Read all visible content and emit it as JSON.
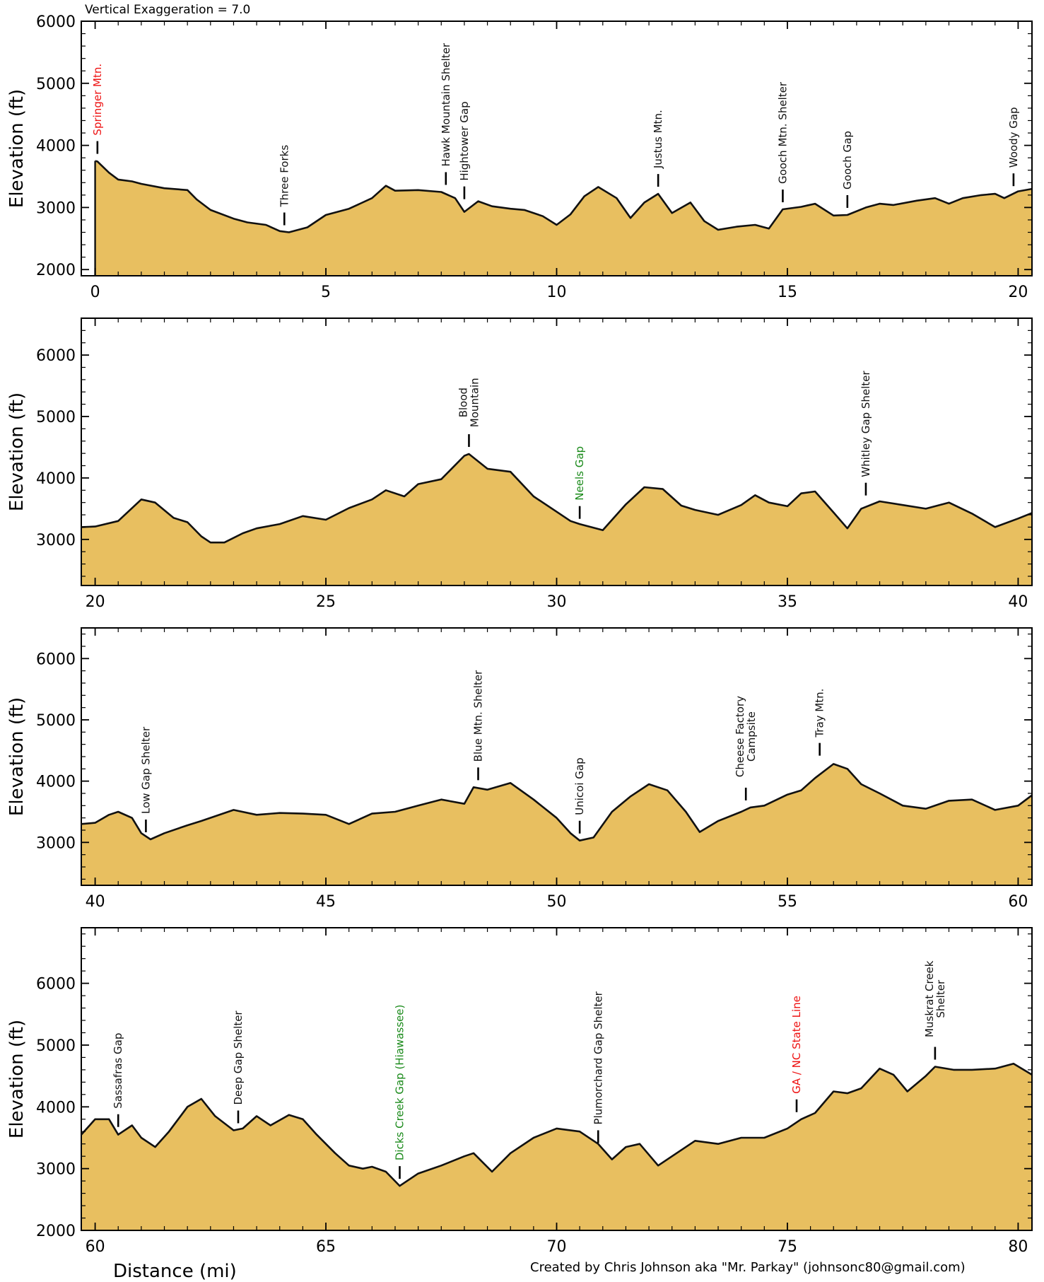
{
  "header": {
    "exaggeration": "Vertical Exaggeration = 7.0"
  },
  "footer": {
    "xlabel": "Distance (mi)",
    "credit": "Created by Chris Johnson aka \"Mr. Parkay\" (johnsonc80@gmail.com)"
  },
  "colors": {
    "fill": "#E8BF60",
    "line": "#111111",
    "green": "#1a8a1a",
    "red": "#ee1111"
  },
  "chart_data": [
    {
      "type": "area",
      "ylabel": "Elevation (ft)",
      "xlim": [
        -0.3,
        20.3
      ],
      "ylim": [
        1900,
        6000
      ],
      "xticks": [
        0,
        5,
        10,
        15,
        20
      ],
      "yticks": [
        2000,
        3000,
        4000,
        5000,
        6000
      ],
      "x": [
        0,
        0.05,
        0.3,
        0.5,
        0.8,
        1.0,
        1.5,
        2.0,
        2.2,
        2.5,
        3.0,
        3.3,
        3.7,
        4.0,
        4.2,
        4.6,
        5.0,
        5.5,
        6.0,
        6.3,
        6.5,
        7.0,
        7.5,
        7.8,
        8.0,
        8.3,
        8.6,
        9.0,
        9.3,
        9.7,
        10.0,
        10.3,
        10.6,
        10.9,
        11.3,
        11.6,
        11.9,
        12.2,
        12.5,
        12.9,
        13.2,
        13.5,
        13.9,
        14.3,
        14.6,
        14.9,
        15.3,
        15.6,
        16.0,
        16.3,
        16.7,
        17.0,
        17.3,
        17.8,
        18.2,
        18.5,
        18.8,
        19.2,
        19.5,
        19.7,
        20.0,
        20.3
      ],
      "y": [
        3750,
        3740,
        3560,
        3450,
        3420,
        3380,
        3310,
        3280,
        3130,
        2960,
        2820,
        2760,
        2720,
        2620,
        2600,
        2680,
        2880,
        2980,
        3150,
        3350,
        3270,
        3280,
        3250,
        3150,
        2930,
        3100,
        3020,
        2980,
        2960,
        2860,
        2720,
        2890,
        3180,
        3330,
        3150,
        2830,
        3080,
        3220,
        2910,
        3080,
        2780,
        2640,
        2690,
        2720,
        2660,
        2970,
        3010,
        3060,
        2870,
        2880,
        3000,
        3060,
        3040,
        3110,
        3150,
        3060,
        3150,
        3200,
        3220,
        3150,
        3260,
        3300
      ],
      "markers": [
        {
          "x": 0.05,
          "y": 3750,
          "label": "Springer Mtn.",
          "color": "red"
        },
        {
          "x": 4.1,
          "y": 2600,
          "label": "Three Forks",
          "color": "black"
        },
        {
          "x": 7.6,
          "y": 3250,
          "label": "Hawk Mountain Shelter",
          "color": "black"
        },
        {
          "x": 8.0,
          "y": 3020,
          "label": "Hightower Gap",
          "color": "black"
        },
        {
          "x": 12.2,
          "y": 3220,
          "label": "Justus Mtn.",
          "color": "black"
        },
        {
          "x": 14.9,
          "y": 2970,
          "label": "Gooch Mtn. Shelter",
          "color": "black"
        },
        {
          "x": 16.3,
          "y": 2880,
          "label": "Gooch Gap",
          "color": "black"
        },
        {
          "x": 19.9,
          "y": 3230,
          "label": "Woody Gap",
          "color": "black"
        }
      ]
    },
    {
      "type": "area",
      "ylabel": "Elevation (ft)",
      "xlim": [
        19.7,
        40.3
      ],
      "ylim": [
        2250,
        6600
      ],
      "xticks": [
        20,
        25,
        30,
        35,
        40
      ],
      "yticks": [
        3000,
        4000,
        5000,
        6000
      ],
      "x": [
        19.7,
        20.0,
        20.5,
        21.0,
        21.3,
        21.7,
        22.0,
        22.3,
        22.5,
        22.8,
        23.2,
        23.5,
        24.0,
        24.5,
        25.0,
        25.5,
        26.0,
        26.3,
        26.7,
        27.0,
        27.5,
        28.0,
        28.1,
        28.5,
        29.0,
        29.5,
        30.0,
        30.3,
        30.5,
        31.0,
        31.5,
        31.9,
        32.3,
        32.7,
        33.0,
        33.5,
        34.0,
        34.3,
        34.6,
        35.0,
        35.3,
        35.6,
        36.0,
        36.3,
        36.6,
        37.0,
        37.5,
        38.0,
        38.5,
        39.0,
        39.5,
        40.0,
        40.3
      ],
      "y": [
        3200,
        3210,
        3300,
        3650,
        3600,
        3350,
        3280,
        3050,
        2950,
        2950,
        3100,
        3180,
        3250,
        3380,
        3320,
        3510,
        3650,
        3800,
        3700,
        3900,
        3980,
        4360,
        4390,
        4150,
        4100,
        3700,
        3450,
        3300,
        3250,
        3150,
        3570,
        3850,
        3820,
        3550,
        3480,
        3400,
        3560,
        3720,
        3600,
        3540,
        3750,
        3780,
        3440,
        3180,
        3500,
        3620,
        3560,
        3500,
        3600,
        3420,
        3200,
        3340,
        3430
      ],
      "markers": [
        {
          "x": 28.1,
          "y": 4390,
          "label": "Blood\nMountain",
          "color": "black"
        },
        {
          "x": 30.5,
          "y": 3220,
          "label": "Neels Gap",
          "color": "green"
        },
        {
          "x": 36.7,
          "y": 3600,
          "label": "Whitley Gap Shelter",
          "color": "black"
        }
      ]
    },
    {
      "type": "area",
      "ylabel": "Elevation (ft)",
      "xlim": [
        39.7,
        60.3
      ],
      "ylim": [
        2300,
        6500
      ],
      "xticks": [
        40,
        45,
        50,
        55,
        60
      ],
      "yticks": [
        3000,
        4000,
        5000,
        6000
      ],
      "x": [
        39.7,
        40.0,
        40.3,
        40.5,
        40.8,
        41.0,
        41.2,
        41.5,
        42.0,
        42.3,
        43.0,
        43.5,
        44.0,
        44.5,
        45.0,
        45.5,
        46.0,
        46.5,
        47.0,
        47.5,
        48.0,
        48.2,
        48.5,
        49.0,
        49.5,
        50.0,
        50.3,
        50.5,
        50.8,
        51.2,
        51.6,
        52.0,
        52.4,
        52.8,
        53.1,
        53.5,
        54.0,
        54.2,
        54.5,
        55.0,
        55.3,
        55.6,
        56.0,
        56.3,
        56.6,
        57.0,
        57.5,
        58.0,
        58.5,
        59.0,
        59.5,
        60.0,
        60.3
      ],
      "y": [
        3300,
        3320,
        3450,
        3500,
        3400,
        3150,
        3050,
        3150,
        3280,
        3350,
        3530,
        3450,
        3480,
        3470,
        3450,
        3300,
        3470,
        3500,
        3600,
        3700,
        3630,
        3900,
        3860,
        3970,
        3700,
        3400,
        3150,
        3030,
        3080,
        3500,
        3750,
        3950,
        3850,
        3500,
        3170,
        3350,
        3500,
        3570,
        3600,
        3780,
        3850,
        4050,
        4280,
        4200,
        3950,
        3800,
        3600,
        3550,
        3680,
        3700,
        3530,
        3600,
        3770
      ],
      "markers": [
        {
          "x": 41.1,
          "y": 3050,
          "label": "Low Gap Shelter",
          "color": "black"
        },
        {
          "x": 48.3,
          "y": 3900,
          "label": "Blue Mtn. Shelter",
          "color": "black"
        },
        {
          "x": 50.5,
          "y": 3030,
          "label": "Unicoi Gap",
          "color": "black"
        },
        {
          "x": 54.1,
          "y": 3570,
          "label": "Cheese Factory\nCampsite",
          "color": "black"
        },
        {
          "x": 55.7,
          "y": 4300,
          "label": "Tray Mtn.",
          "color": "black"
        }
      ]
    },
    {
      "type": "area",
      "ylabel": "Elevation (ft)",
      "xlabel": "Distance (mi)",
      "xlim": [
        59.7,
        80.3
      ],
      "ylim": [
        2000,
        6900
      ],
      "xticks": [
        60,
        65,
        70,
        75,
        80
      ],
      "yticks": [
        2000,
        3000,
        4000,
        5000,
        6000
      ],
      "x": [
        59.7,
        60.0,
        60.3,
        60.5,
        60.8,
        61.0,
        61.3,
        61.6,
        62.0,
        62.3,
        62.6,
        63.0,
        63.2,
        63.5,
        63.8,
        64.2,
        64.5,
        64.8,
        65.2,
        65.5,
        65.8,
        66.0,
        66.3,
        66.6,
        67.0,
        67.5,
        68.0,
        68.2,
        68.6,
        69.0,
        69.5,
        70.0,
        70.5,
        70.9,
        71.2,
        71.5,
        71.8,
        72.2,
        72.5,
        73.0,
        73.5,
        74.0,
        74.5,
        75.0,
        75.3,
        75.6,
        76.0,
        76.3,
        76.6,
        77.0,
        77.3,
        77.6,
        78.0,
        78.2,
        78.6,
        79.0,
        79.5,
        79.9,
        80.3
      ],
      "y": [
        3550,
        3800,
        3800,
        3550,
        3700,
        3500,
        3350,
        3600,
        4000,
        4130,
        3850,
        3620,
        3650,
        3850,
        3700,
        3870,
        3800,
        3550,
        3250,
        3050,
        3000,
        3030,
        2950,
        2720,
        2920,
        3050,
        3200,
        3250,
        2950,
        3250,
        3500,
        3650,
        3600,
        3400,
        3150,
        3350,
        3400,
        3050,
        3200,
        3450,
        3400,
        3500,
        3500,
        3650,
        3800,
        3900,
        4250,
        4220,
        4300,
        4620,
        4520,
        4250,
        4500,
        4650,
        4600,
        4600,
        4620,
        4700,
        4520
      ],
      "markers": [
        {
          "x": 60.5,
          "y": 3560,
          "label": "Sassafras Gap",
          "color": "black"
        },
        {
          "x": 63.1,
          "y": 3620,
          "label": "Deep Gap Shelter",
          "color": "black"
        },
        {
          "x": 66.6,
          "y": 2720,
          "label": "Dicks Creek Gap (Hiawassee)",
          "color": "green"
        },
        {
          "x": 70.9,
          "y": 3300,
          "label": "Plumorchard Gap Shelter",
          "color": "black"
        },
        {
          "x": 75.2,
          "y": 3800,
          "label": "GA / NC State Line",
          "color": "red"
        },
        {
          "x": 78.2,
          "y": 4650,
          "label": "Muskrat Creek\nShelter",
          "color": "black"
        }
      ]
    }
  ]
}
